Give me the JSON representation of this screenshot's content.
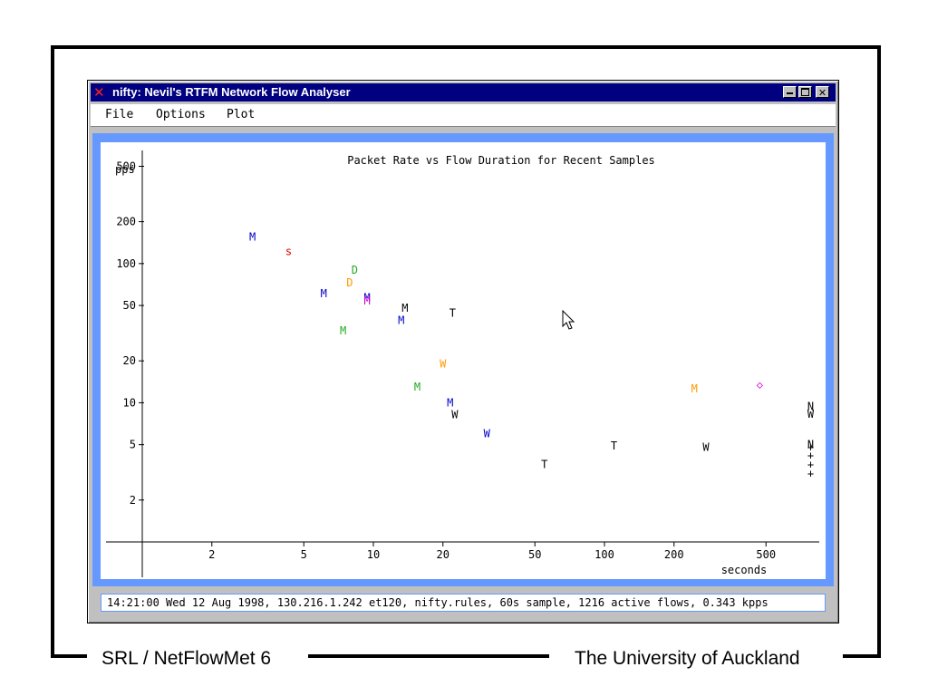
{
  "window": {
    "title": "nifty: Nevil's RTFM Network Flow Analyser",
    "app_icon": "x-icon"
  },
  "menu": {
    "items": [
      "File",
      "Options",
      "Plot"
    ]
  },
  "chart_data": {
    "type": "scatter",
    "title": "Packet Rate vs Flow Duration for Recent Samples",
    "xlabel": "seconds",
    "ylabel": "pps",
    "x_scale": "log",
    "y_scale": "log",
    "x_ticks": [
      2,
      5,
      10,
      20,
      50,
      100,
      200,
      500
    ],
    "y_ticks": [
      2,
      5,
      10,
      20,
      50,
      100,
      200,
      500
    ],
    "xlim": [
      1,
      850
    ],
    "ylim": [
      1,
      650
    ],
    "grid": false,
    "points": [
      {
        "x": 3.0,
        "y": 155,
        "label": "M",
        "color": "#0000cc"
      },
      {
        "x": 4.3,
        "y": 122,
        "label": "s",
        "color": "#dd0000"
      },
      {
        "x": 8.3,
        "y": 90,
        "label": "D",
        "color": "#22aa22"
      },
      {
        "x": 7.9,
        "y": 73,
        "label": "D",
        "color": "#ff9900"
      },
      {
        "x": 6.1,
        "y": 61,
        "label": "M",
        "color": "#0000cc"
      },
      {
        "x": 9.4,
        "y": 57,
        "label": "M",
        "color": "#0000cc"
      },
      {
        "x": 9.4,
        "y": 54,
        "label": "M",
        "color": "#cc00cc"
      },
      {
        "x": 13.7,
        "y": 48,
        "label": "M",
        "color": "#000000"
      },
      {
        "x": 13.2,
        "y": 39,
        "label": "M",
        "color": "#0000cc"
      },
      {
        "x": 22,
        "y": 44,
        "label": "T",
        "color": "#000000"
      },
      {
        "x": 7.4,
        "y": 33,
        "label": "M",
        "color": "#22aa22"
      },
      {
        "x": 20,
        "y": 19,
        "label": "W",
        "color": "#ff9900"
      },
      {
        "x": 15.5,
        "y": 13,
        "label": "M",
        "color": "#22aa22"
      },
      {
        "x": 21.5,
        "y": 10,
        "label": "M",
        "color": "#0000cc"
      },
      {
        "x": 22.5,
        "y": 8.2,
        "label": "W",
        "color": "#000000"
      },
      {
        "x": 31,
        "y": 6.0,
        "label": "W",
        "color": "#0000cc"
      },
      {
        "x": 55,
        "y": 3.6,
        "label": "T",
        "color": "#000000"
      },
      {
        "x": 110,
        "y": 4.9,
        "label": "T",
        "color": "#000000"
      },
      {
        "x": 275,
        "y": 4.8,
        "label": "W",
        "color": "#000000"
      },
      {
        "x": 245,
        "y": 12.6,
        "label": "M",
        "color": "#ff9900"
      },
      {
        "x": 470,
        "y": 13.5,
        "label": "◇",
        "color": "#dd00dd"
      },
      {
        "x": 780,
        "y": 9.4,
        "label": "N",
        "color": "#000000"
      },
      {
        "x": 780,
        "y": 8.3,
        "label": "W",
        "color": "#000000"
      },
      {
        "x": 780,
        "y": 5.0,
        "label": "N",
        "color": "#000000"
      },
      {
        "x": 780,
        "y": 4.8,
        "label": "+",
        "color": "#000000"
      },
      {
        "x": 780,
        "y": 4.2,
        "label": "+",
        "color": "#000000"
      },
      {
        "x": 780,
        "y": 3.6,
        "label": "+",
        "color": "#000000"
      },
      {
        "x": 780,
        "y": 3.1,
        "label": "+",
        "color": "#000000"
      }
    ]
  },
  "status": {
    "text": "14:21:00 Wed 12 Aug 1998, 130.216.1.242 et120, nifty.rules, 60s sample, 1216 active flows, 0.343 kpps"
  },
  "footer": {
    "left": "SRL / NetFlowMet 6",
    "right": "The University of Auckland"
  },
  "cursor_icon": "mouse-pointer-icon"
}
